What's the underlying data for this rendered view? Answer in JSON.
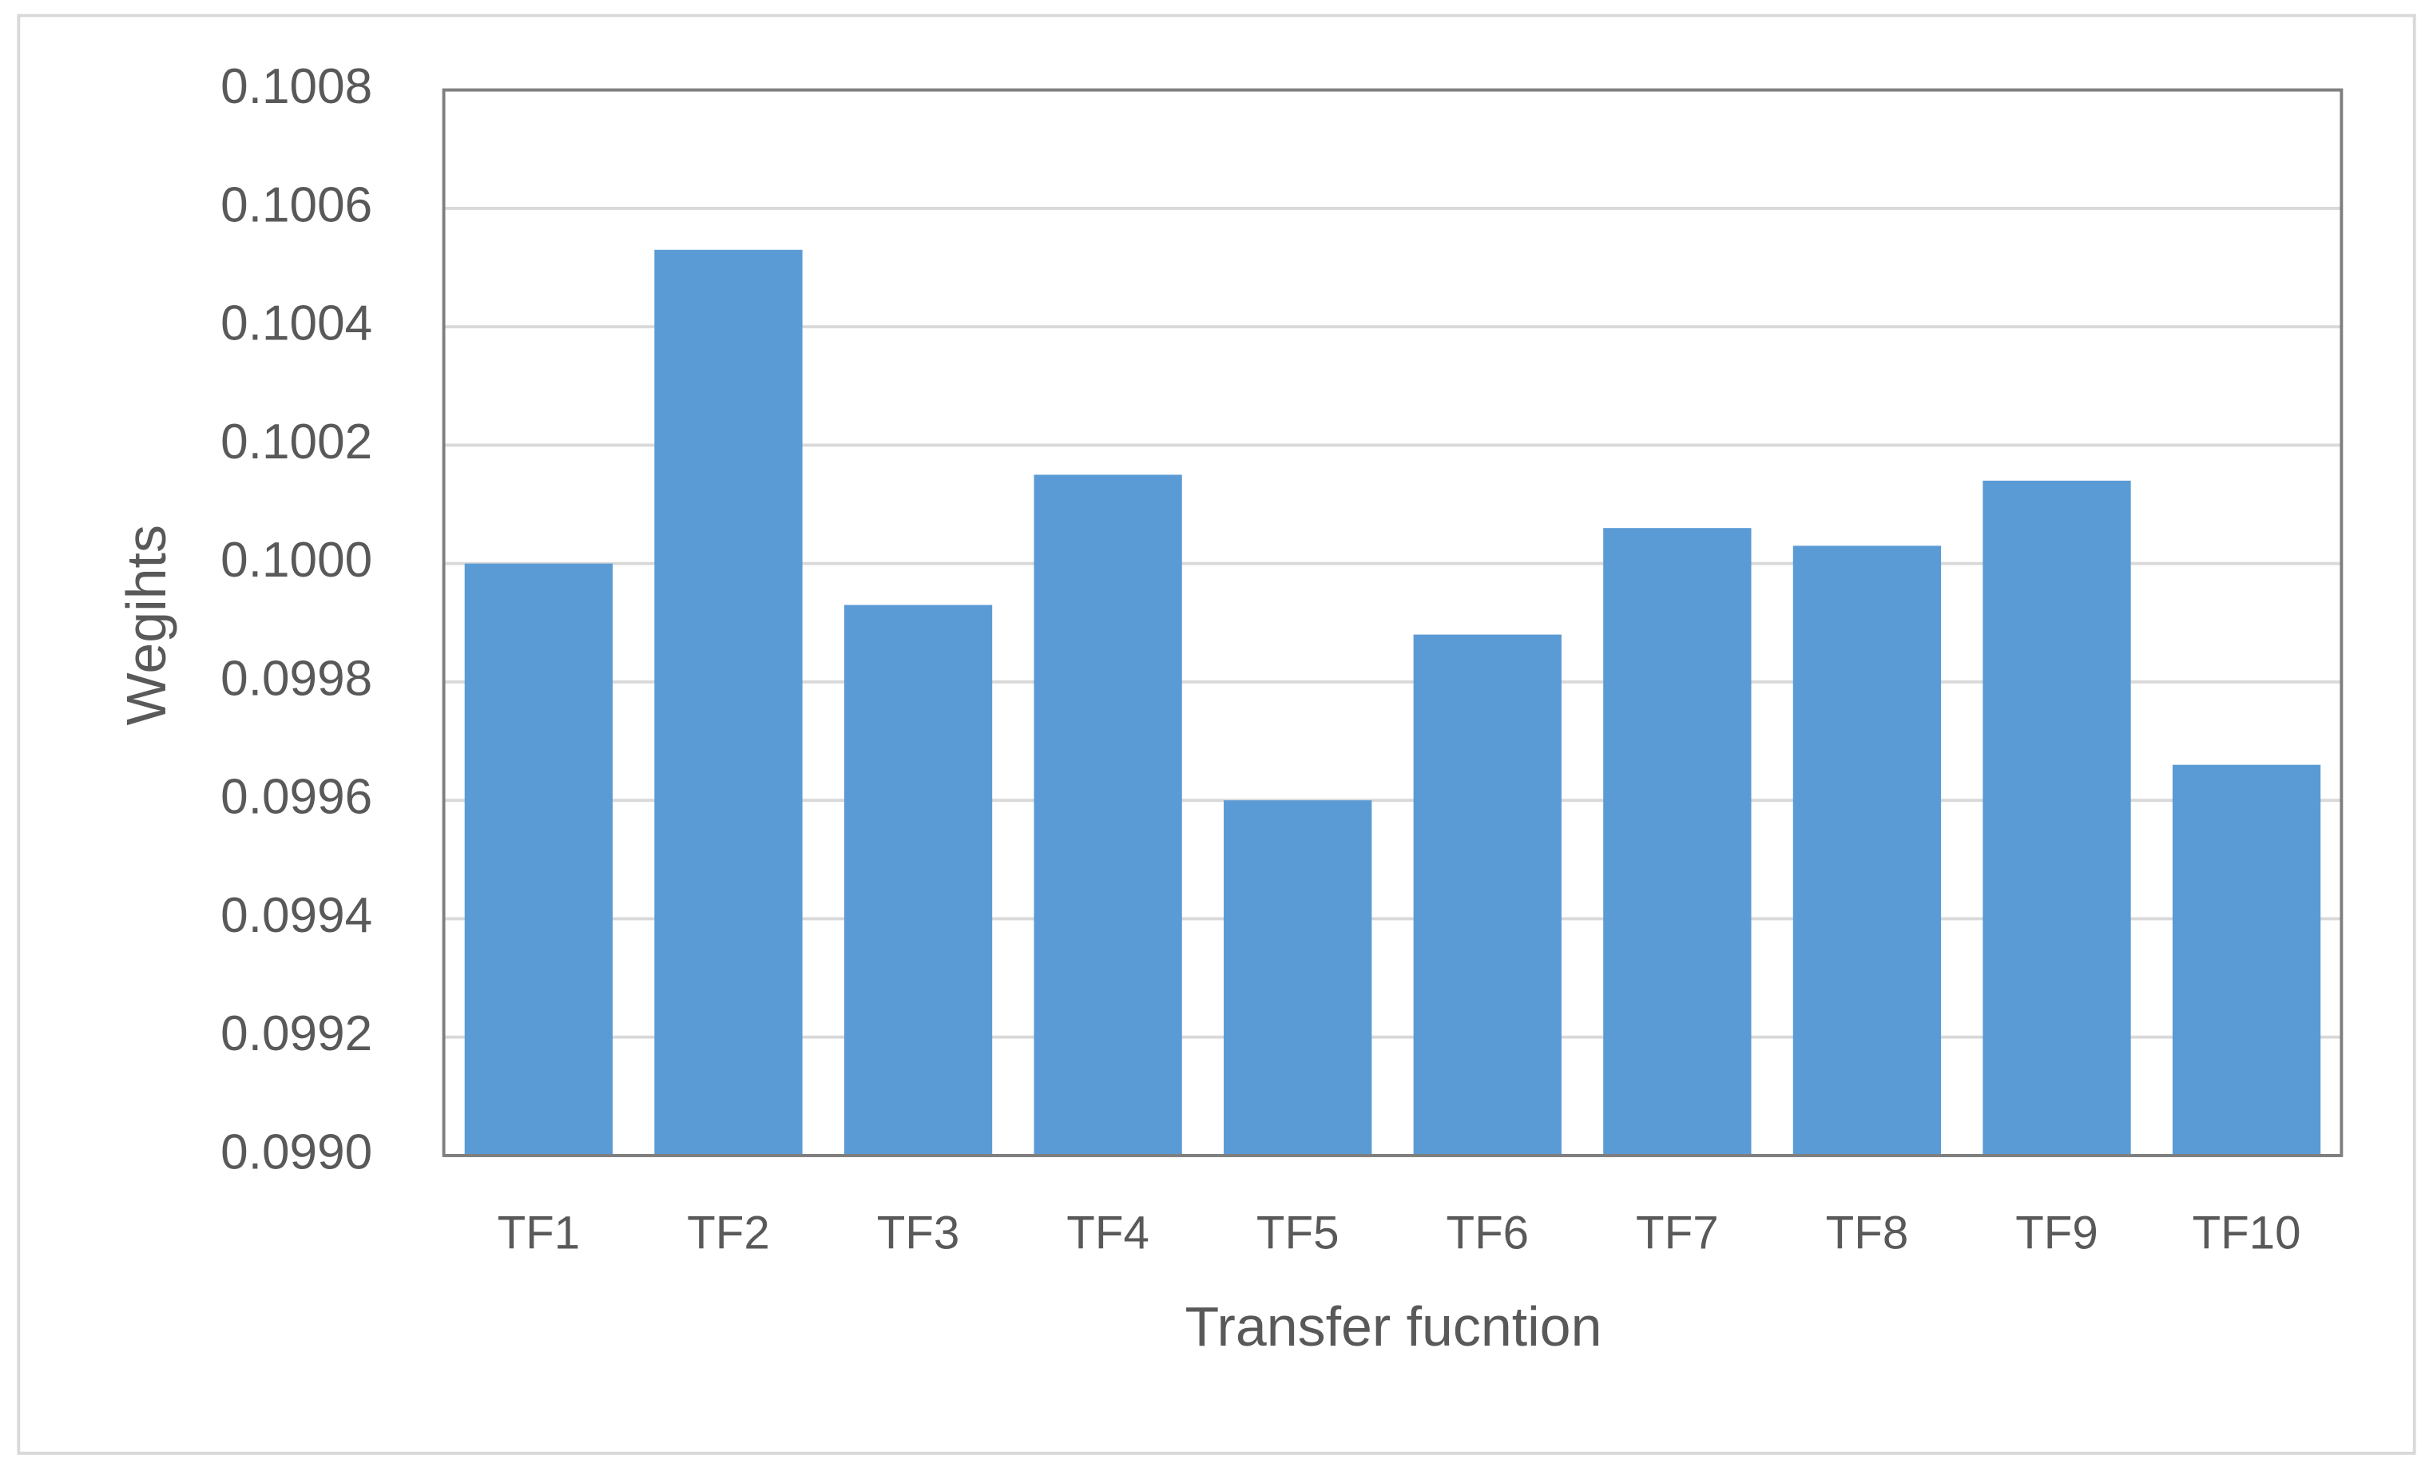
{
  "chart_data": {
    "type": "bar",
    "x_label": "Transfer fucntion",
    "y_label": "Wegihts",
    "categories": [
      "TF1",
      "TF2",
      "TF3",
      "TF4",
      "TF5",
      "TF6",
      "TF7",
      "TF8",
      "TF9",
      "TF10"
    ],
    "values": [
      0.1,
      0.10053,
      0.09993,
      0.10015,
      0.0996,
      0.09988,
      0.10006,
      0.10003,
      0.10014,
      0.09966
    ],
    "color": "#5b9bd5",
    "ylim": [
      0.099,
      0.1008
    ],
    "yticks": [
      {
        "value": 0.099,
        "label": "0.0990"
      },
      0.0992,
      0.0994,
      0.0996,
      0.0998,
      {
        "value": 0.1,
        "label": "0.1000"
      },
      0.1002,
      0.1004,
      0.1006,
      0.1008
    ],
    "grid": true
  }
}
